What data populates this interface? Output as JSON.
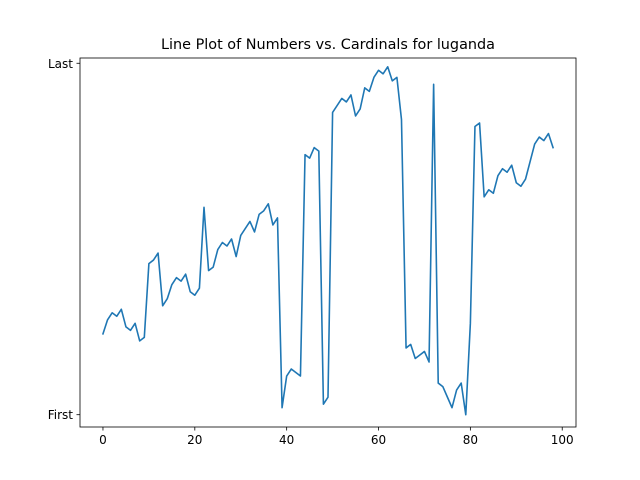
{
  "chart_data": {
    "type": "line",
    "title": "Line Plot of Numbers vs. Cardinals for luganda",
    "xlabel": "",
    "ylabel": "",
    "xlim": [
      -5,
      103
    ],
    "ylim": [
      -0.035,
      1.015
    ],
    "grid": false,
    "x_ticks": [
      0,
      20,
      40,
      60,
      80,
      100
    ],
    "y_ticks": [
      {
        "value": 0,
        "label": "First"
      },
      {
        "value": 1,
        "label": "Last"
      }
    ],
    "series": [
      {
        "color": "#1f77b4",
        "x": [
          0,
          1,
          2,
          3,
          4,
          5,
          6,
          7,
          8,
          9,
          10,
          11,
          12,
          13,
          14,
          15,
          16,
          17,
          18,
          19,
          20,
          21,
          22,
          23,
          24,
          25,
          26,
          27,
          28,
          29,
          30,
          31,
          32,
          33,
          34,
          35,
          36,
          37,
          38,
          39,
          40,
          41,
          42,
          43,
          44,
          45,
          46,
          47,
          48,
          49,
          50,
          51,
          52,
          53,
          54,
          55,
          56,
          57,
          58,
          59,
          60,
          61,
          62,
          63,
          64,
          65,
          66,
          67,
          68,
          69,
          70,
          71,
          72,
          73,
          74,
          75,
          76,
          77,
          78,
          79,
          80,
          81,
          82,
          83,
          84,
          85,
          86,
          87,
          88,
          89,
          90,
          91,
          92,
          93,
          94,
          95,
          96,
          97,
          98
        ],
        "values": [
          0.23,
          0.27,
          0.29,
          0.28,
          0.3,
          0.25,
          0.24,
          0.26,
          0.21,
          0.22,
          0.43,
          0.44,
          0.46,
          0.31,
          0.33,
          0.37,
          0.39,
          0.38,
          0.4,
          0.35,
          0.34,
          0.36,
          0.59,
          0.41,
          0.42,
          0.47,
          0.49,
          0.48,
          0.5,
          0.45,
          0.51,
          0.53,
          0.55,
          0.52,
          0.57,
          0.58,
          0.6,
          0.54,
          0.56,
          0.02,
          0.11,
          0.13,
          0.12,
          0.11,
          0.74,
          0.73,
          0.76,
          0.75,
          0.03,
          0.05,
          0.86,
          0.88,
          0.9,
          0.89,
          0.91,
          0.85,
          0.87,
          0.93,
          0.92,
          0.96,
          0.98,
          0.97,
          0.99,
          0.95,
          0.96,
          0.84,
          0.19,
          0.2,
          0.16,
          0.17,
          0.18,
          0.15,
          0.94,
          0.09,
          0.08,
          0.05,
          0.02,
          0.07,
          0.09,
          0.0,
          0.26,
          0.82,
          0.83,
          0.62,
          0.64,
          0.63,
          0.68,
          0.7,
          0.69,
          0.71,
          0.66,
          0.65,
          0.67,
          0.72,
          0.77,
          0.79,
          0.78,
          0.8,
          0.76
        ]
      }
    ]
  }
}
